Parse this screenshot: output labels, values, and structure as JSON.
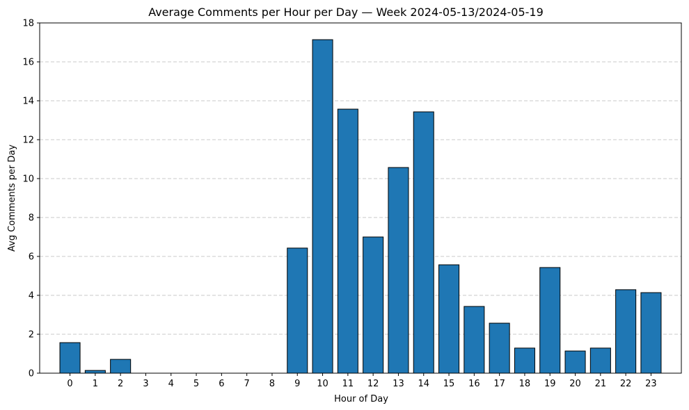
{
  "chart_data": {
    "type": "bar",
    "title": "Average Comments per Hour per Day — Week 2024-05-13/2024-05-19",
    "xlabel": "Hour of Day",
    "ylabel": "Avg Comments per Day",
    "categories": [
      "0",
      "1",
      "2",
      "3",
      "4",
      "5",
      "6",
      "7",
      "8",
      "9",
      "10",
      "11",
      "12",
      "13",
      "14",
      "15",
      "16",
      "17",
      "18",
      "19",
      "20",
      "21",
      "22",
      "23"
    ],
    "values": [
      1.57,
      0.14,
      0.71,
      0,
      0,
      0,
      0,
      0,
      0,
      6.43,
      17.14,
      13.57,
      7.0,
      10.57,
      13.43,
      5.57,
      3.43,
      2.57,
      1.29,
      5.43,
      1.14,
      1.29,
      4.29,
      4.14
    ],
    "ylim": [
      0,
      18
    ],
    "yticks": [
      0,
      2,
      4,
      6,
      8,
      10,
      12,
      14,
      16,
      18
    ],
    "grid": "y-dashed",
    "legend": "none",
    "colors": {
      "bar": "#1f77b4",
      "edge": "#000000",
      "grid": "#c8c8c8"
    }
  }
}
